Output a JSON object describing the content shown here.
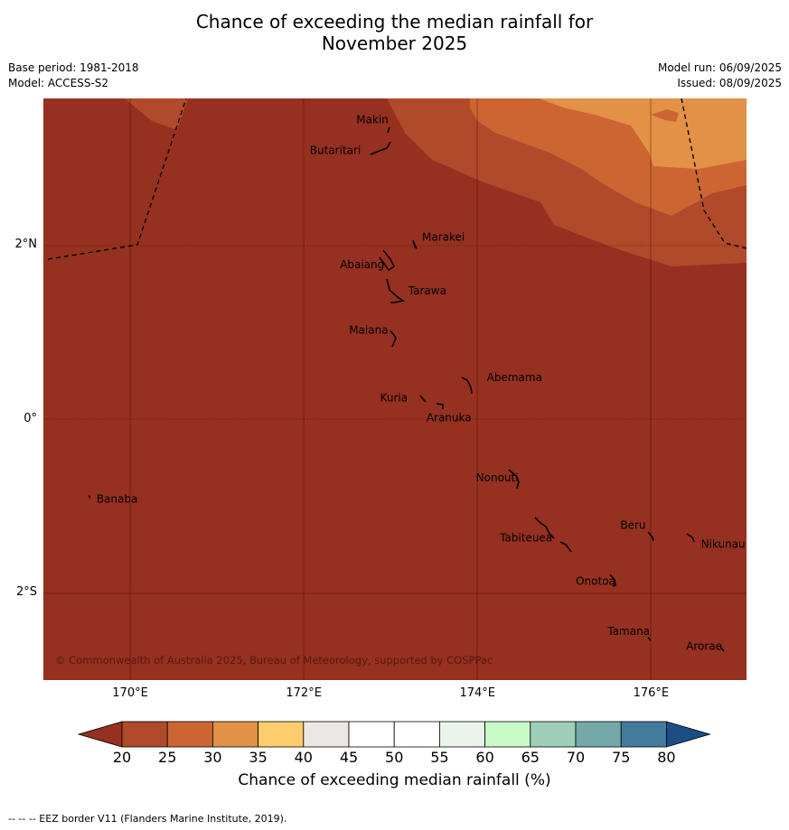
{
  "title_line1": "Chance of exceeding the median rainfall for",
  "title_line2": "November 2025",
  "base_period": "Base period: 1981-2018",
  "model": "Model: ACCESS-S2",
  "model_run": "Model run: 06/09/2025",
  "issued": "Issued: 08/09/2025",
  "copyright": "© Commonwealth of Australia 2025, Bureau of Meteorology, supported by COSPPac",
  "footnote": "--  --  -- EEZ border V11 (Flanders Marine Institute, 2019).",
  "map": {
    "lon_range": [
      169,
      177.1
    ],
    "lat_range": [
      -3,
      3.7
    ],
    "lon_ticks": [
      {
        "value": 170,
        "label": "170°E"
      },
      {
        "value": 172,
        "label": "172°E"
      },
      {
        "value": 174,
        "label": "174°E"
      },
      {
        "value": 176,
        "label": "176°E"
      }
    ],
    "lat_ticks": [
      {
        "value": 2,
        "label": "2°N"
      },
      {
        "value": 0,
        "label": "0°"
      },
      {
        "value": -2,
        "label": "2°S"
      }
    ],
    "base_fill_color": "#963020",
    "islands": [
      {
        "name": "Makin",
        "lon": 173.0,
        "lat": 3.35
      },
      {
        "name": "Butaritari",
        "lon": 172.85,
        "lat": 3.1
      },
      {
        "name": "Marakei",
        "lon": 173.3,
        "lat": 2.0
      },
      {
        "name": "Abaiang",
        "lon": 173.0,
        "lat": 1.85
      },
      {
        "name": "Tarawa",
        "lon": 173.1,
        "lat": 1.42
      },
      {
        "name": "Maiana",
        "lon": 173.0,
        "lat": 0.93
      },
      {
        "name": "Abemama",
        "lon": 173.9,
        "lat": 0.38
      },
      {
        "name": "Kuria",
        "lon": 173.4,
        "lat": 0.23
      },
      {
        "name": "Aranuka",
        "lon": 173.6,
        "lat": 0.17
      },
      {
        "name": "Nonouti",
        "lon": 174.4,
        "lat": -0.65
      },
      {
        "name": "Banaba",
        "lon": 169.55,
        "lat": -0.87
      },
      {
        "name": "Tabiteuea",
        "lon": 174.8,
        "lat": -1.3
      },
      {
        "name": "Beru",
        "lon": 176.0,
        "lat": -1.3
      },
      {
        "name": "Nikunau",
        "lon": 176.45,
        "lat": -1.35
      },
      {
        "name": "Onotoa",
        "lon": 175.55,
        "lat": -1.8
      },
      {
        "name": "Tamana",
        "lon": 176.0,
        "lat": -2.5
      },
      {
        "name": "Arorae",
        "lon": 176.8,
        "lat": -2.65
      }
    ]
  },
  "colorbar": {
    "title": "Chance of exceeding median rainfall (%)",
    "ticks": [
      "20",
      "25",
      "30",
      "35",
      "40",
      "45",
      "50",
      "55",
      "60",
      "65",
      "70",
      "75",
      "80"
    ],
    "below_color": "#963020",
    "above_color": "#1a4f85",
    "colors": [
      "#b04a2a",
      "#cd6533",
      "#e29146",
      "#fdcc6c",
      "#ebe7e5",
      "#ffffff",
      "#ffffff",
      "#eaf4ea",
      "#c8fac8",
      "#9ecfb8",
      "#74a9a9",
      "#447b9d"
    ]
  }
}
